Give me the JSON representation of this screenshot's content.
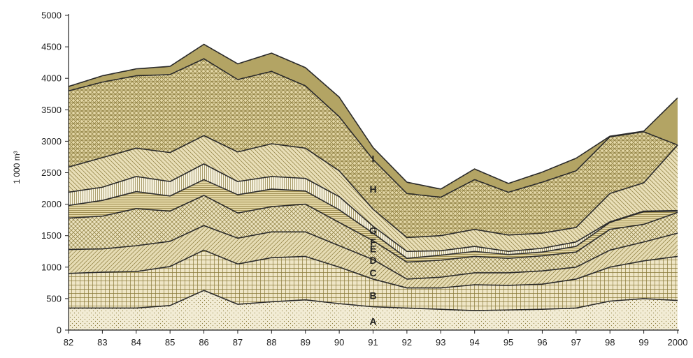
{
  "chart_data": {
    "type": "area",
    "stacked": true,
    "title": "",
    "xlabel": "",
    "ylabel": "1 000 m³",
    "ylim": [
      0,
      5000
    ],
    "yticks": [
      0,
      500,
      1000,
      1500,
      2000,
      2500,
      3000,
      3500,
      4000,
      4500,
      5000
    ],
    "categories": [
      "82",
      "83",
      "84",
      "85",
      "86",
      "87",
      "88",
      "89",
      "90",
      "91",
      "92",
      "93",
      "94",
      "95",
      "96",
      "97",
      "98",
      "99",
      "2000"
    ],
    "legend": "none",
    "grid": false,
    "series": [
      {
        "name": "A",
        "values": [
          350,
          350,
          350,
          390,
          630,
          410,
          450,
          480,
          420,
          370,
          350,
          330,
          310,
          320,
          330,
          350,
          460,
          500,
          470
        ],
        "fill": "#f2ecd5",
        "pattern": "dots"
      },
      {
        "name": "B",
        "values": [
          550,
          570,
          580,
          620,
          640,
          640,
          700,
          690,
          580,
          440,
          320,
          340,
          410,
          390,
          400,
          460,
          540,
          600,
          700
        ],
        "fill": "#efe6c6",
        "pattern": "grid"
      },
      {
        "name": "C",
        "values": [
          380,
          370,
          410,
          400,
          390,
          410,
          410,
          390,
          340,
          310,
          140,
          170,
          190,
          200,
          210,
          190,
          270,
          300,
          370
        ],
        "fill": "#e6dcb4",
        "pattern": "diag"
      },
      {
        "name": "D",
        "values": [
          500,
          520,
          590,
          480,
          480,
          400,
          400,
          440,
          370,
          300,
          270,
          270,
          260,
          230,
          240,
          240,
          330,
          280,
          330
        ],
        "fill": "#ece3c0",
        "pattern": "cross"
      },
      {
        "name": "E",
        "values": [
          200,
          250,
          270,
          240,
          250,
          290,
          280,
          210,
          200,
          120,
          60,
          80,
          80,
          60,
          60,
          90,
          110,
          200,
          20
        ],
        "fill": "#e2d5a3",
        "pattern": "hstripe"
      },
      {
        "name": "F",
        "values": [
          210,
          210,
          240,
          230,
          250,
          210,
          200,
          200,
          210,
          110,
          110,
          70,
          80,
          50,
          60,
          70,
          10,
          10,
          10
        ],
        "fill": "#f7f3e2",
        "pattern": "vstripe"
      },
      {
        "name": "G",
        "values": [
          400,
          470,
          450,
          460,
          450,
          470,
          520,
          480,
          410,
          270,
          220,
          240,
          270,
          260,
          240,
          230,
          450,
          450,
          1040
        ],
        "fill": "#e9dfb8",
        "pattern": "diag2"
      },
      {
        "name": "H",
        "values": [
          1210,
          1200,
          1150,
          1240,
          1220,
          1150,
          1150,
          990,
          860,
          790,
          700,
          610,
          790,
          680,
          810,
          900,
          900,
          810,
          0
        ],
        "fill": "#e4d8a8",
        "pattern": "crossdiag"
      },
      {
        "name": "I",
        "values": [
          70,
          100,
          110,
          130,
          230,
          250,
          290,
          290,
          310,
          190,
          180,
          130,
          170,
          140,
          160,
          200,
          10,
          10,
          750
        ],
        "fill": "#dccd8f",
        "pattern": "hstripe2"
      }
    ],
    "annotations": [
      {
        "text": "A",
        "x": 9.0,
        "y": 140
      },
      {
        "text": "B",
        "x": 9.0,
        "y": 550
      },
      {
        "text": "C",
        "x": 9.0,
        "y": 910
      },
      {
        "text": "D",
        "x": 9.0,
        "y": 1110
      },
      {
        "text": "E",
        "x": 9.0,
        "y": 1290
      },
      {
        "text": "F",
        "x": 9.0,
        "y": 1400
      },
      {
        "text": "G",
        "x": 9.0,
        "y": 1580
      },
      {
        "text": "H",
        "x": 9.0,
        "y": 2240
      },
      {
        "text": "I",
        "x": 9.0,
        "y": 2720
      }
    ]
  }
}
